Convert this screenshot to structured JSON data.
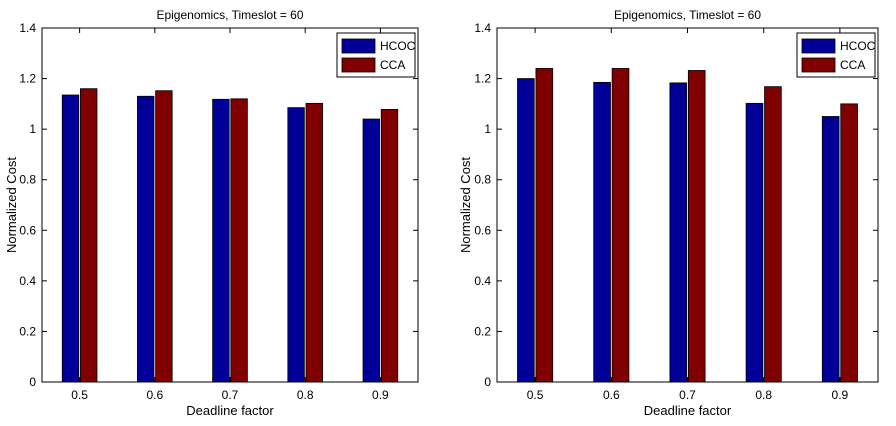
{
  "chart_data": [
    {
      "type": "bar",
      "title": "Epigenomics, Timeslot = 60",
      "xlabel": "Deadline factor",
      "ylabel": "Normalized Cost",
      "categories": [
        "0.5",
        "0.6",
        "0.7",
        "0.8",
        "0.9"
      ],
      "yticks": [
        "0",
        "0.2",
        "0.4",
        "0.6",
        "0.8",
        "1",
        "1.2",
        "1.4"
      ],
      "ylim": [
        0,
        1.4
      ],
      "grid": false,
      "legend_position": "top-right",
      "series": [
        {
          "name": "HCOC",
          "color": "#000099",
          "values": [
            1.135,
            1.13,
            1.118,
            1.085,
            1.04
          ]
        },
        {
          "name": "CCA",
          "color": "#800000",
          "values": [
            1.16,
            1.152,
            1.12,
            1.102,
            1.078
          ]
        }
      ]
    },
    {
      "type": "bar",
      "title": "Epigenomics, Timeslot = 60",
      "xlabel": "Deadline factor",
      "ylabel": "Normalized Cost",
      "categories": [
        "0.5",
        "0.6",
        "0.7",
        "0.8",
        "0.9"
      ],
      "yticks": [
        "0",
        "0.2",
        "0.4",
        "0.6",
        "0.8",
        "1",
        "1.2",
        "1.4"
      ],
      "ylim": [
        0,
        1.4
      ],
      "grid": false,
      "legend_position": "top-right",
      "series": [
        {
          "name": "HCOC",
          "color": "#000099",
          "values": [
            1.2,
            1.185,
            1.183,
            1.102,
            1.05
          ]
        },
        {
          "name": "CCA",
          "color": "#800000",
          "values": [
            1.24,
            1.24,
            1.232,
            1.168,
            1.1
          ]
        }
      ]
    }
  ]
}
